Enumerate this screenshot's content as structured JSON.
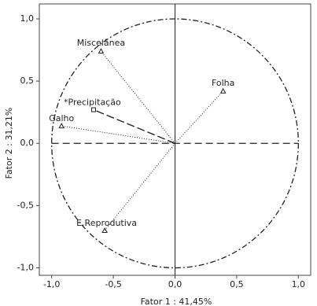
{
  "chart_data": {
    "type": "scatter",
    "x_label": "Fator 1 : 41,45%",
    "y_label": "Fator 2 : 31,21%",
    "labels": [
      "Miscelânea",
      "Folha",
      "*Precipitação",
      "Galho",
      "E.Reprodutiva"
    ],
    "x": [
      -0.6,
      0.39,
      -0.66,
      -0.92,
      -0.57
    ],
    "y": [
      0.74,
      0.42,
      0.27,
      0.14,
      -0.7
    ],
    "markers": [
      "triangle",
      "triangle",
      "square",
      "triangle",
      "triangle"
    ],
    "line_styles": [
      "dotted",
      "dotted",
      "dashed",
      "dotted",
      "dotted"
    ],
    "color": "#222222",
    "xlim": [
      -1.1,
      1.1
    ],
    "ylim": [
      -1.06,
      1.12
    ],
    "xticks": [
      {
        "value": -1,
        "label": "-1,0"
      },
      {
        "value": -0.5,
        "label": "-0,5"
      },
      {
        "value": 0,
        "label": "0,0"
      },
      {
        "value": 0.5,
        "label": "0,5"
      },
      {
        "value": 1,
        "label": "1,0"
      }
    ],
    "yticks": [
      {
        "value": -1,
        "label": "-1,0"
      },
      {
        "value": -0.5,
        "label": "-0,5"
      },
      {
        "value": 0,
        "label": "0,0"
      },
      {
        "value": 0.5,
        "label": "0,5"
      },
      {
        "value": 1,
        "label": "1,0"
      }
    ],
    "unit_circle": true
  }
}
